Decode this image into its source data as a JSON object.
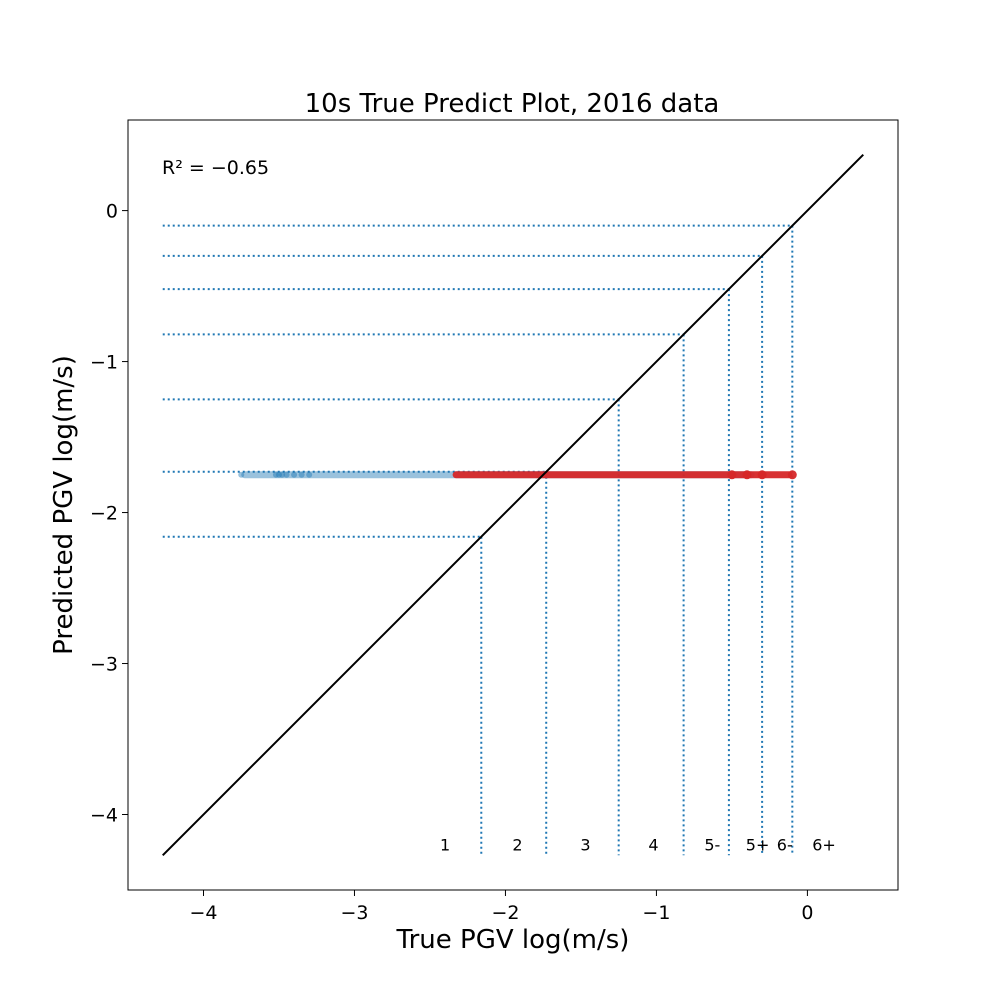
{
  "chart_data": {
    "type": "scatter",
    "title": "10s True Predict Plot, 2016 data",
    "xlabel": "True PGV log(m/s)",
    "ylabel": "Predicted PGV log(m/s)",
    "annotation": "R² = −0.65",
    "xlim": [
      -4.5,
      0.6
    ],
    "ylim": [
      -4.5,
      0.6
    ],
    "xticks": [
      -4,
      -3,
      -2,
      -1,
      0
    ],
    "yticks": [
      -4,
      -3,
      -2,
      -1,
      0
    ],
    "xtick_labels": [
      "−4",
      "−3",
      "−2",
      "−1",
      "0"
    ],
    "ytick_labels": [
      "−4",
      "−3",
      "−2",
      "−1",
      "0"
    ],
    "grid": false,
    "identity_line": {
      "from": [
        -4.27,
        -4.27
      ],
      "to": [
        0.37,
        0.37
      ],
      "color": "#000000"
    },
    "intensity_thresholds": [
      -2.16,
      -1.73,
      -1.25,
      -0.82,
      -0.52,
      -0.3,
      -0.1
    ],
    "intensity_labels": [
      {
        "label": "1",
        "x": -2.4
      },
      {
        "label": "2",
        "x": -1.92
      },
      {
        "label": "3",
        "x": -1.47
      },
      {
        "label": "4",
        "x": -1.02
      },
      {
        "label": "5-",
        "x": -0.63
      },
      {
        "label": "5+",
        "x": -0.33
      },
      {
        "label": "6-",
        "x": -0.15
      },
      {
        "label": "6+",
        "x": 0.11
      }
    ],
    "threshold_color": "#1f77b4",
    "series": [
      {
        "color": "#1f77b4",
        "opacity": 0.45,
        "y": -1.75,
        "x_range": [
          -3.75,
          -0.35
        ],
        "sample_points": [
          -3.75,
          -3.52,
          -3.5,
          -3.48,
          -3.45,
          -3.4,
          -3.35,
          -3.3
        ]
      },
      {
        "color": "#d62728",
        "opacity": 0.95,
        "y": -1.75,
        "x_range": [
          -2.35,
          -0.1
        ],
        "sample_points": [
          -0.5,
          -0.4,
          -0.3,
          -0.1
        ]
      }
    ]
  }
}
